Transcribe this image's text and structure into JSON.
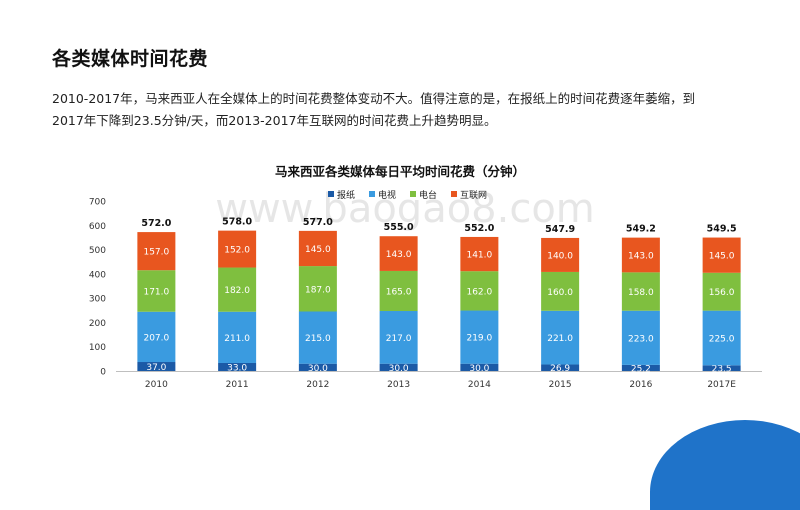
{
  "page": {
    "title": "各类媒体时间花费",
    "intro_line1": "2010-2017年，马来西亚人在全媒体上的时间花费整体变动不大。值得注意的是，在报纸上的时间花费逐年萎缩，到",
    "intro_line2": "2017年下降到23.5分钟/天，而2013-2017年互联网的时间花费上升趋势明显。",
    "watermark": "www.baogao8.com"
  },
  "colors": {
    "报纸": "#1b5aa6",
    "电视": "#3a9be0",
    "电台": "#7fbf3f",
    "互联网": "#e8561f"
  },
  "chart_data": {
    "type": "bar",
    "stacked": true,
    "title": "马来西亚各类媒体每日平均时间花费（分钟）",
    "categories": [
      "2010",
      "2011",
      "2012",
      "2013",
      "2014",
      "2015",
      "2016",
      "2017E"
    ],
    "series": [
      {
        "name": "报纸",
        "values": [
          37.0,
          33.0,
          30.0,
          30.0,
          30.0,
          26.9,
          25.2,
          23.5
        ],
        "labels": [
          "37.0",
          "33.0",
          "30.0",
          "30.0",
          "30.0",
          "26.9",
          "25.2",
          "23.5"
        ]
      },
      {
        "name": "电视",
        "values": [
          207.0,
          211.0,
          215.0,
          217.0,
          219.0,
          221.0,
          223.0,
          225.0
        ],
        "labels": [
          "207.0",
          "211.0",
          "215.0",
          "217.0",
          "219.0",
          "221.0",
          "223.0",
          "225.0"
        ]
      },
      {
        "name": "电台",
        "values": [
          171.0,
          182.0,
          187.0,
          165.0,
          162.0,
          160.0,
          158.0,
          156.0
        ],
        "labels": [
          "171.0",
          "182.0",
          "187.0",
          "165.0",
          "162.0",
          "160.0",
          "158.0",
          "156.0"
        ]
      },
      {
        "name": "互联网",
        "values": [
          157.0,
          152.0,
          145.0,
          143.0,
          141.0,
          140.0,
          143.0,
          145.0
        ],
        "labels": [
          "157.0",
          "152.0",
          "145.0",
          "143.0",
          "141.0",
          "140.0",
          "143.0",
          "145.0"
        ]
      }
    ],
    "totals": [
      572.0,
      578.0,
      577.0,
      555.0,
      552.0,
      547.9,
      549.2,
      549.5
    ],
    "total_labels": [
      "572.0",
      "578.0",
      "577.0",
      "555.0",
      "552.0",
      "547.9",
      "549.2",
      "549.5"
    ],
    "ylim": [
      0,
      700
    ],
    "yticks": [
      "0",
      "100",
      "200",
      "300",
      "400",
      "500",
      "600",
      "700"
    ],
    "ytick_values": [
      0,
      100,
      200,
      300,
      400,
      500,
      600,
      700
    ],
    "xlabel": "",
    "ylabel": "",
    "grid": false,
    "legend_position": "top"
  }
}
